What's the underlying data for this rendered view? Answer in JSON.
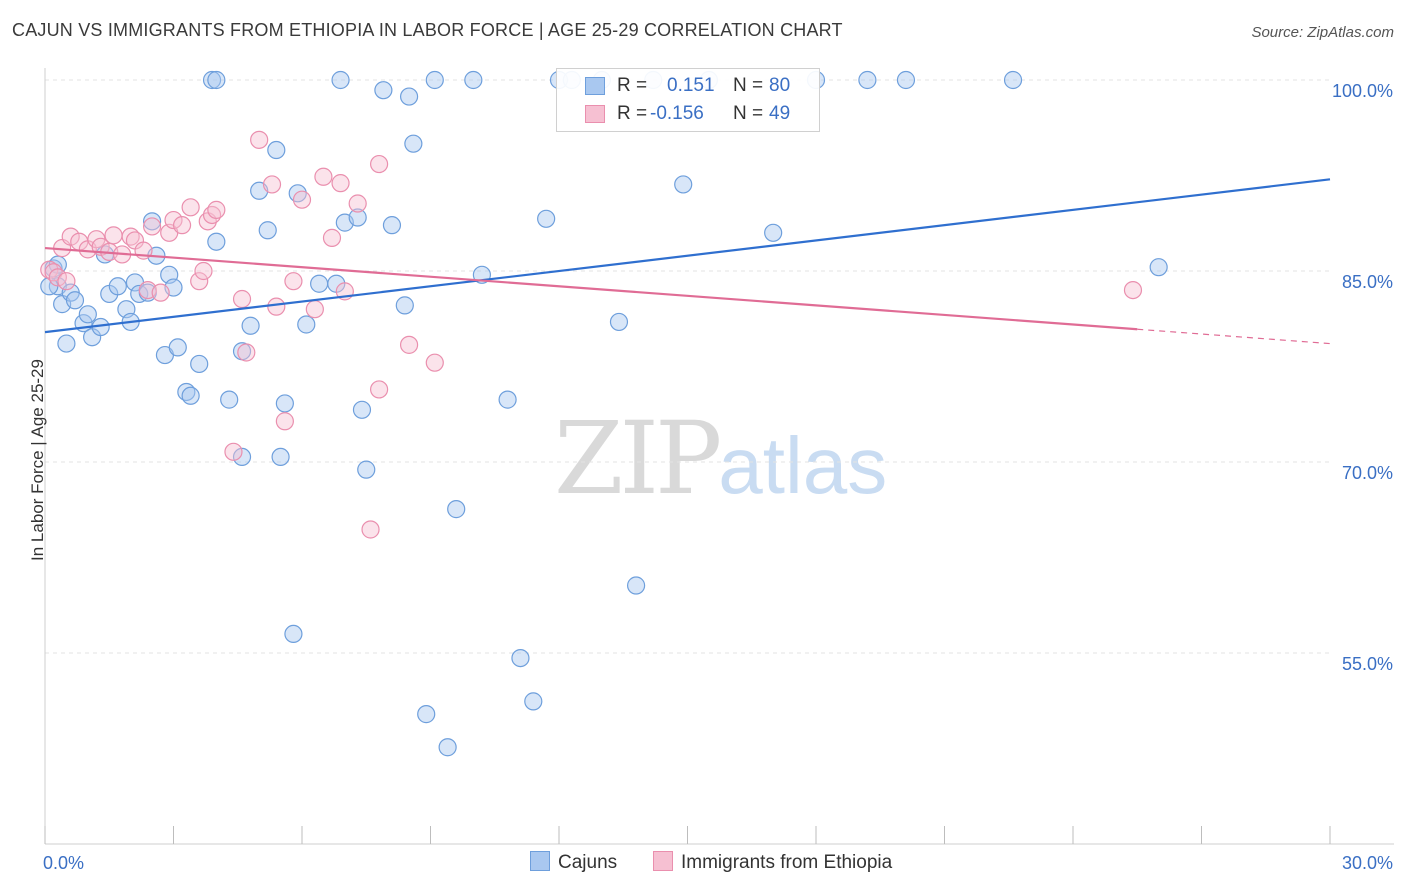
{
  "header": {
    "title": "CAJUN VS IMMIGRANTS FROM ETHIOPIA IN LABOR FORCE | AGE 25-29 CORRELATION CHART",
    "source": "Source: ZipAtlas.com"
  },
  "watermark": {
    "left": "ZIP",
    "right": "atlas"
  },
  "stats": {
    "rows": [
      {
        "r_label": "R =",
        "r_value": "0.151",
        "n_label": "N =",
        "n_value": "80"
      },
      {
        "r_label": "R =",
        "r_value": "-0.156",
        "n_label": "N =",
        "n_value": "49"
      }
    ]
  },
  "legend": {
    "items": [
      "Cajuns",
      "Immigrants from Ethiopia"
    ]
  },
  "colors": {
    "blue_fill": "#a9c8f0",
    "blue_stroke": "#6e9fdc",
    "blue_line": "#2f6fcf",
    "pink_fill": "#f6c0d2",
    "pink_stroke": "#ea8fae",
    "pink_line": "#e06c95",
    "tick_text": "#3a6fc4",
    "grid": "#e3e3e3"
  },
  "chart_data": {
    "type": "scatter",
    "title": "CAJUN VS IMMIGRANTS FROM ETHIOPIA IN LABOR FORCE | AGE 25-29 CORRELATION CHART",
    "xlabel": "",
    "ylabel": "In Labor Force | Age 25-29",
    "xlim": [
      0,
      30
    ],
    "ylim": [
      40,
      102
    ],
    "x_tick_labels": [
      "0.0%",
      "30.0%"
    ],
    "y_ticks": [
      55,
      70,
      85,
      100
    ],
    "y_tick_labels": [
      "55.0%",
      "70.0%",
      "85.0%",
      "100.0%"
    ],
    "grid": true,
    "legend_position": "bottom-center",
    "series": [
      {
        "name": "Cajuns",
        "color": "#a9c8f0",
        "trend": {
          "x": [
            0,
            30
          ],
          "y": [
            80.2,
            92.2
          ],
          "dashed_from": null
        },
        "points": [
          [
            0.2,
            85.2
          ],
          [
            0.3,
            83.8
          ],
          [
            0.4,
            82.4
          ],
          [
            0.5,
            79.3
          ],
          [
            0.6,
            83.3
          ],
          [
            0.7,
            82.7
          ],
          [
            0.9,
            80.9
          ],
          [
            1.0,
            81.6
          ],
          [
            1.1,
            79.8
          ],
          [
            1.3,
            80.6
          ],
          [
            1.4,
            86.3
          ],
          [
            1.5,
            83.2
          ],
          [
            1.7,
            83.8
          ],
          [
            1.9,
            82.0
          ],
          [
            2.0,
            81.0
          ],
          [
            2.1,
            84.1
          ],
          [
            2.2,
            83.2
          ],
          [
            2.4,
            83.3
          ],
          [
            2.5,
            88.9
          ],
          [
            2.6,
            86.2
          ],
          [
            2.8,
            78.4
          ],
          [
            2.9,
            84.7
          ],
          [
            3.0,
            83.7
          ],
          [
            3.1,
            79.0
          ],
          [
            3.3,
            75.5
          ],
          [
            3.4,
            75.2
          ],
          [
            3.6,
            77.7
          ],
          [
            3.9,
            100.0
          ],
          [
            4.0,
            100.0
          ],
          [
            4.0,
            87.3
          ],
          [
            4.3,
            74.9
          ],
          [
            4.6,
            70.4
          ],
          [
            4.6,
            78.7
          ],
          [
            4.8,
            80.7
          ],
          [
            5.0,
            91.3
          ],
          [
            5.2,
            88.2
          ],
          [
            5.4,
            94.5
          ],
          [
            5.5,
            70.4
          ],
          [
            5.6,
            74.6
          ],
          [
            5.8,
            56.5
          ],
          [
            5.9,
            91.1
          ],
          [
            6.1,
            80.8
          ],
          [
            6.4,
            84.0
          ],
          [
            6.8,
            84.0
          ],
          [
            6.9,
            100.0
          ],
          [
            7.0,
            88.8
          ],
          [
            7.3,
            89.2
          ],
          [
            7.4,
            74.1
          ],
          [
            7.5,
            69.4
          ],
          [
            7.9,
            99.2
          ],
          [
            8.1,
            88.6
          ],
          [
            8.4,
            82.3
          ],
          [
            8.5,
            98.7
          ],
          [
            8.6,
            95.0
          ],
          [
            8.9,
            50.2
          ],
          [
            9.1,
            100.0
          ],
          [
            9.4,
            47.6
          ],
          [
            9.6,
            66.3
          ],
          [
            10.0,
            100.0
          ],
          [
            10.2,
            84.7
          ],
          [
            10.8,
            74.9
          ],
          [
            11.1,
            54.6
          ],
          [
            11.4,
            51.2
          ],
          [
            11.7,
            89.1
          ],
          [
            12.0,
            100.0
          ],
          [
            12.3,
            100.0
          ],
          [
            13.0,
            100.0
          ],
          [
            13.4,
            81.0
          ],
          [
            13.8,
            60.3
          ],
          [
            14.2,
            100.0
          ],
          [
            14.9,
            91.8
          ],
          [
            15.5,
            100.0
          ],
          [
            17.0,
            88.0
          ],
          [
            18.0,
            100.0
          ],
          [
            19.2,
            100.0
          ],
          [
            20.1,
            100.0
          ],
          [
            22.6,
            100.0
          ],
          [
            26.0,
            85.3
          ],
          [
            0.1,
            83.8
          ],
          [
            0.3,
            85.5
          ]
        ]
      },
      {
        "name": "Immigrants from Ethiopia",
        "color": "#f6c0d2",
        "trend": {
          "x": [
            0,
            30
          ],
          "y": [
            86.8,
            79.3
          ],
          "dashed_from": 25.5
        },
        "points": [
          [
            0.1,
            85.1
          ],
          [
            0.2,
            84.9
          ],
          [
            0.3,
            84.5
          ],
          [
            0.4,
            86.8
          ],
          [
            0.5,
            84.2
          ],
          [
            0.6,
            87.7
          ],
          [
            0.8,
            87.3
          ],
          [
            1.0,
            86.7
          ],
          [
            1.2,
            87.5
          ],
          [
            1.3,
            86.9
          ],
          [
            1.5,
            86.5
          ],
          [
            1.6,
            87.8
          ],
          [
            1.8,
            86.3
          ],
          [
            2.0,
            87.7
          ],
          [
            2.1,
            87.4
          ],
          [
            2.3,
            86.6
          ],
          [
            2.4,
            83.5
          ],
          [
            2.5,
            88.5
          ],
          [
            2.7,
            83.3
          ],
          [
            2.9,
            88.0
          ],
          [
            3.0,
            89.0
          ],
          [
            3.2,
            88.6
          ],
          [
            3.4,
            90.0
          ],
          [
            3.6,
            84.2
          ],
          [
            3.7,
            85.0
          ],
          [
            3.8,
            88.9
          ],
          [
            3.9,
            89.4
          ],
          [
            4.0,
            89.8
          ],
          [
            4.4,
            70.8
          ],
          [
            4.6,
            82.8
          ],
          [
            4.7,
            78.6
          ],
          [
            5.0,
            95.3
          ],
          [
            5.3,
            91.8
          ],
          [
            5.4,
            82.2
          ],
          [
            5.6,
            73.2
          ],
          [
            5.8,
            84.2
          ],
          [
            6.0,
            90.6
          ],
          [
            6.3,
            82.0
          ],
          [
            6.5,
            92.4
          ],
          [
            6.7,
            87.6
          ],
          [
            6.9,
            91.9
          ],
          [
            7.0,
            83.4
          ],
          [
            7.3,
            90.3
          ],
          [
            7.6,
            64.7
          ],
          [
            7.8,
            93.4
          ],
          [
            7.8,
            75.7
          ],
          [
            8.5,
            79.2
          ],
          [
            9.1,
            77.8
          ],
          [
            25.4,
            83.5
          ]
        ]
      }
    ]
  }
}
